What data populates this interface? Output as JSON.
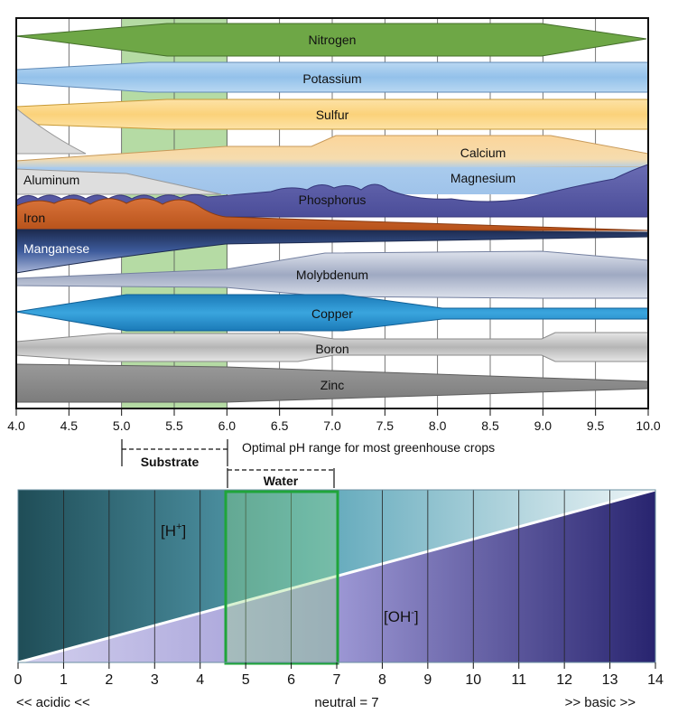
{
  "nutrients": [
    {
      "name": "Nitrogen",
      "color": "#6ea746"
    },
    {
      "name": "Potassium",
      "color": "#9ec7ea"
    },
    {
      "name": "Sulfur",
      "color": "#fbd786"
    },
    {
      "name": "Calcium",
      "color": "#fbd59a"
    },
    {
      "name": "Aluminum",
      "color": "#dedede"
    },
    {
      "name": "Magnesium",
      "color": "#a8c9ec"
    },
    {
      "name": "Phosphorus",
      "color": "#5a5ca6"
    },
    {
      "name": "Iron",
      "color": "#c9601f"
    },
    {
      "name": "Manganese",
      "color": "#304a8a"
    },
    {
      "name": "Molybdenum",
      "color": "#c3cad8"
    },
    {
      "name": "Copper",
      "color": "#2894d0"
    },
    {
      "name": "Boron",
      "color": "#c8c8c8"
    },
    {
      "name": "Zinc",
      "color": "#888888"
    }
  ],
  "top_axis_ticks": [
    "4.0",
    "4.5",
    "5.0",
    "5.5",
    "6.0",
    "6.5",
    "7.0",
    "7.5",
    "8.0",
    "8.5",
    "9.0",
    "9.5",
    "10.0"
  ],
  "optimal_range_label": "Optimal pH range for most greenhouse crops",
  "substrate": {
    "label": "Substrate",
    "range": [
      5.0,
      6.0
    ]
  },
  "water": {
    "label": "Water",
    "range": [
      6.0,
      7.0
    ]
  },
  "ph_scale": {
    "ticks": [
      "0",
      "1",
      "2",
      "3",
      "4",
      "5",
      "6",
      "7",
      "8",
      "9",
      "10",
      "11",
      "12",
      "13",
      "14"
    ],
    "h_ion_label": "[H",
    "h_ion_sup": "+",
    "h_ion_close": "]",
    "oh_ion_label": "[OH",
    "oh_ion_sup": "-",
    "oh_ion_close": "]",
    "acidic_label": "<< acidic <<",
    "neutral_label": "neutral = 7",
    "basic_label": ">> basic >>",
    "highlight_range": [
      4.5,
      7.0
    ]
  },
  "colors": {
    "substrate_band": "#b5dba4",
    "water_box": "#1fa53a",
    "h_dark": "#1f4d57",
    "h_light": "#e7f1f3",
    "oh_light": "#c9c4e8",
    "oh_dark": "#28246f"
  }
}
